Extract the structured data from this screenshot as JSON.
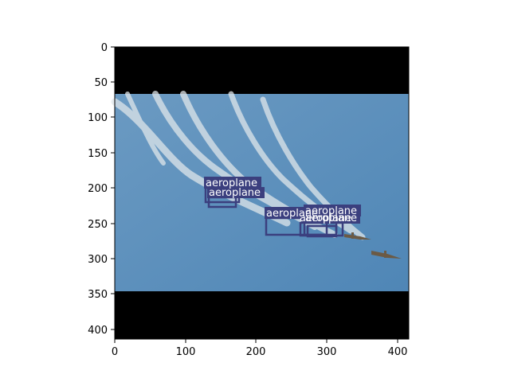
{
  "axes": {
    "x_ticks": [
      "0",
      "100",
      "200",
      "300",
      "400"
    ],
    "y_ticks": [
      "0",
      "50",
      "100",
      "150",
      "200",
      "250",
      "300",
      "350",
      "400"
    ]
  },
  "image": {
    "description_colors": {
      "sky": "#5b8fbd",
      "bar": "#000000",
      "box": "#3b3f7e"
    }
  },
  "detections": [
    {
      "label": "aeroplane"
    },
    {
      "label": "aeroplane"
    },
    {
      "label": "aeroplane"
    },
    {
      "label": "aeroplane"
    },
    {
      "label": "aeroplane"
    },
    {
      "label": "aeroplane"
    }
  ]
}
